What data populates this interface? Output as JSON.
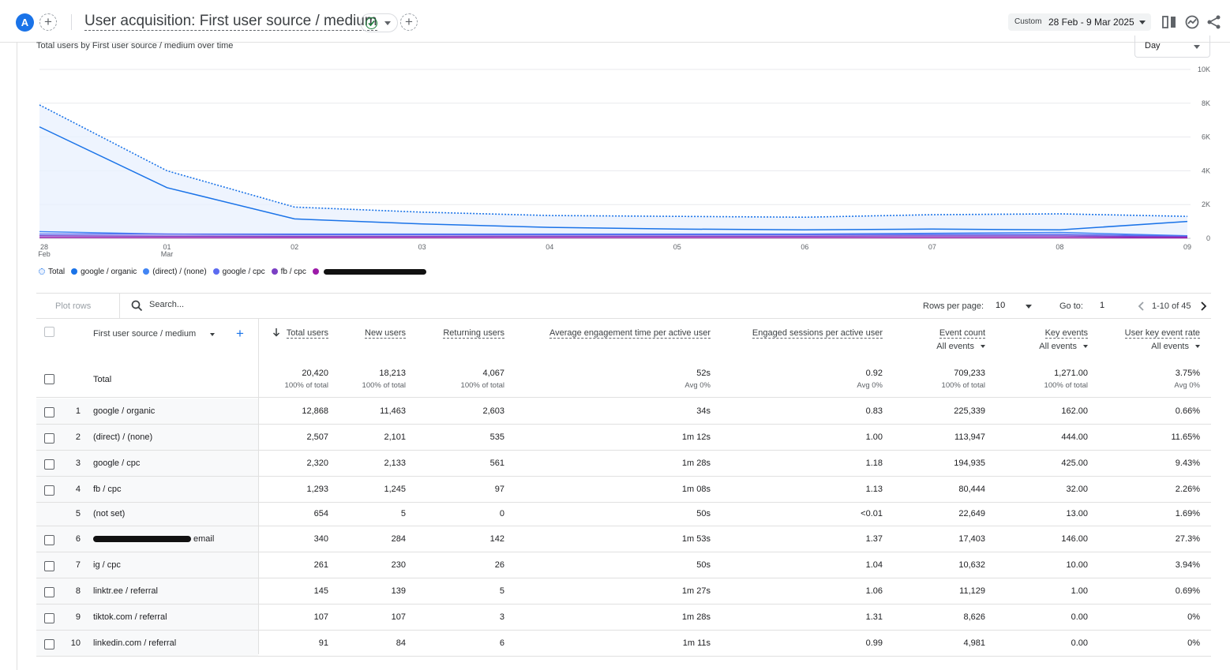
{
  "header": {
    "avatar_letter": "A",
    "add_comparison": "+",
    "title": "User acquisition: First user source / medium",
    "add_report": "+",
    "date_label": "Custom",
    "date_range": "28 Feb - 9 Mar 2025",
    "icons": [
      "compare-icon",
      "insights-icon",
      "share-icon"
    ]
  },
  "chart": {
    "title": "Total users by First user source / medium over time",
    "granularity": "Day",
    "legend": [
      {
        "label": "Total",
        "color": "#1a73e8",
        "style": "dotted"
      },
      {
        "label": "google / organic",
        "color": "#1a73e8"
      },
      {
        "label": "(direct) / (none)",
        "color": "#4285f4"
      },
      {
        "label": "google / cpc",
        "color": "#5c6bf0"
      },
      {
        "label": "fb / cpc",
        "color": "#7b3fc4"
      },
      {
        "label": "",
        "color": "#9c1aa8",
        "redacted": true
      }
    ]
  },
  "chart_data": {
    "type": "line",
    "title": "Total users by First user source / medium over time",
    "x": [
      "28 Feb",
      "01 Mar",
      "02",
      "03",
      "04",
      "05",
      "06",
      "07",
      "08",
      "09"
    ],
    "x_tick_labels": [
      {
        "top": "28",
        "bottom": "Feb"
      },
      {
        "top": "01",
        "bottom": "Mar"
      },
      {
        "top": "02",
        "bottom": ""
      },
      {
        "top": "03",
        "bottom": ""
      },
      {
        "top": "04",
        "bottom": ""
      },
      {
        "top": "05",
        "bottom": ""
      },
      {
        "top": "06",
        "bottom": ""
      },
      {
        "top": "07",
        "bottom": ""
      },
      {
        "top": "08",
        "bottom": ""
      },
      {
        "top": "09",
        "bottom": ""
      }
    ],
    "y_ticks": [
      "0",
      "2K",
      "4K",
      "6K",
      "8K",
      "10K"
    ],
    "ylim": [
      0,
      10000
    ],
    "y_axis_side": "right",
    "grid": true,
    "series": [
      {
        "name": "Total",
        "color": "#1a73e8",
        "style": "dotted",
        "area": true,
        "values": [
          7900,
          4000,
          1850,
          1550,
          1350,
          1300,
          1250,
          1400,
          1450,
          1300
        ]
      },
      {
        "name": "google / organic",
        "color": "#1a73e8",
        "values": [
          6600,
          3000,
          1150,
          850,
          650,
          550,
          500,
          550,
          500,
          1000
        ]
      },
      {
        "name": "(direct) / (none)",
        "color": "#4285f4",
        "values": [
          400,
          250,
          250,
          250,
          250,
          250,
          250,
          300,
          350,
          150
        ]
      },
      {
        "name": "google / cpc",
        "color": "#5c6bf0",
        "values": [
          250,
          250,
          220,
          220,
          220,
          220,
          220,
          230,
          230,
          120
        ]
      },
      {
        "name": "fb / cpc",
        "color": "#7b3fc4",
        "values": [
          150,
          130,
          120,
          120,
          130,
          130,
          130,
          140,
          140,
          80
        ]
      },
      {
        "color": "#9c1aa8",
        "values": [
          50,
          40,
          40,
          40,
          40,
          40,
          40,
          40,
          40,
          30
        ]
      }
    ]
  },
  "toolbar": {
    "plot_rows": "Plot rows",
    "search_placeholder": "Search...",
    "rows_per_page_label": "Rows per page:",
    "rows_per_page": "10",
    "goto_label": "Go to:",
    "goto_value": "1",
    "range": "1-10 of 45"
  },
  "table": {
    "dimension_header": "First user source / medium",
    "columns": [
      {
        "label": "Total users",
        "sorted": true
      },
      {
        "label": "New users"
      },
      {
        "label": "Returning users"
      },
      {
        "label": "Average engagement time per active user"
      },
      {
        "label": "Engaged sessions per active user"
      },
      {
        "label": "Event count",
        "sub": "All events"
      },
      {
        "label": "Key events",
        "sub": "All events"
      },
      {
        "label": "User key event rate",
        "sub": "All events"
      }
    ],
    "total": {
      "label": "Total",
      "values": [
        "20,420",
        "18,213",
        "4,067",
        "52s",
        "0.92",
        "709,233",
        "1,271.00",
        "3.75%"
      ],
      "subs": [
        "100% of total",
        "100% of total",
        "100% of total",
        "Avg 0%",
        "Avg 0%",
        "100% of total",
        "100% of total",
        "Avg 0%"
      ]
    },
    "rows": [
      {
        "idx": "1",
        "dim": "google / organic",
        "checkbox": true,
        "values": [
          "12,868",
          "11,463",
          "2,603",
          "34s",
          "0.83",
          "225,339",
          "162.00",
          "0.66%"
        ]
      },
      {
        "idx": "2",
        "dim": "(direct) / (none)",
        "checkbox": true,
        "values": [
          "2,507",
          "2,101",
          "535",
          "1m 12s",
          "1.00",
          "113,947",
          "444.00",
          "11.65%"
        ]
      },
      {
        "idx": "3",
        "dim": "google / cpc",
        "checkbox": true,
        "values": [
          "2,320",
          "2,133",
          "561",
          "1m 28s",
          "1.18",
          "194,935",
          "425.00",
          "9.43%"
        ]
      },
      {
        "idx": "4",
        "dim": "fb / cpc",
        "checkbox": true,
        "values": [
          "1,293",
          "1,245",
          "97",
          "1m 08s",
          "1.13",
          "80,444",
          "32.00",
          "2.26%"
        ]
      },
      {
        "idx": "5",
        "dim": "(not set)",
        "checkbox": false,
        "values": [
          "654",
          "5",
          "0",
          "50s",
          "<0.01",
          "22,649",
          "13.00",
          "1.69%"
        ]
      },
      {
        "idx": "6",
        "dim": "email",
        "checkbox": true,
        "redacted": true,
        "values": [
          "340",
          "284",
          "142",
          "1m 53s",
          "1.37",
          "17,403",
          "146.00",
          "27.3%"
        ]
      },
      {
        "idx": "7",
        "dim": "ig / cpc",
        "checkbox": true,
        "values": [
          "261",
          "230",
          "26",
          "50s",
          "1.04",
          "10,632",
          "10.00",
          "3.94%"
        ]
      },
      {
        "idx": "8",
        "dim": "linktr.ee / referral",
        "checkbox": true,
        "values": [
          "145",
          "139",
          "5",
          "1m 27s",
          "1.06",
          "11,129",
          "1.00",
          "0.69%"
        ]
      },
      {
        "idx": "9",
        "dim": "tiktok.com / referral",
        "checkbox": true,
        "values": [
          "107",
          "107",
          "3",
          "1m 28s",
          "1.31",
          "8,626",
          "0.00",
          "0%"
        ]
      },
      {
        "idx": "10",
        "dim": "linkedin.com / referral",
        "checkbox": true,
        "values": [
          "91",
          "84",
          "6",
          "1m 11s",
          "0.99",
          "4,981",
          "0.00",
          "0%"
        ]
      }
    ]
  }
}
